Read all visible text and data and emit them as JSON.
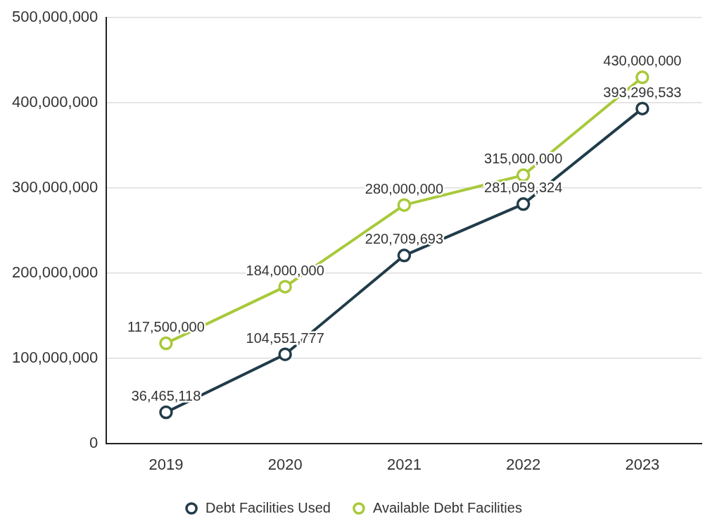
{
  "chart_data": {
    "type": "line",
    "categories": [
      "2019",
      "2020",
      "2021",
      "2022",
      "2023"
    ],
    "series": [
      {
        "name": "Debt Facilities Used",
        "color": "#213c4a",
        "values": [
          36465118,
          104551777,
          220709693,
          281059324,
          393296533
        ],
        "value_labels": [
          "36,465,118",
          "104,551,777",
          "220,709,693",
          "281,059,324",
          "393,296,533"
        ]
      },
      {
        "name": "Available Debt Facilities",
        "color": "#a8c93a",
        "values": [
          117500000,
          184000000,
          280000000,
          315000000,
          430000000
        ],
        "value_labels": [
          "117,500,000",
          "184,000,000",
          "280,000,000",
          "315,000,000",
          "430,000,000"
        ]
      }
    ],
    "ylim": [
      0,
      500000000
    ],
    "yticks": [
      0,
      {
        "value": 100000000,
        "label": "100,000,000"
      },
      {
        "value": 200000000,
        "label": "200,000,000"
      },
      {
        "value": 300000000,
        "label": "300,000,000"
      },
      {
        "value": 400000000,
        "label": "400,000,000"
      },
      {
        "value": 500000000,
        "label": "500,000,000"
      }
    ],
    "grid": "y",
    "legend": "bottom",
    "marker": "circle",
    "line_style": "solid"
  }
}
